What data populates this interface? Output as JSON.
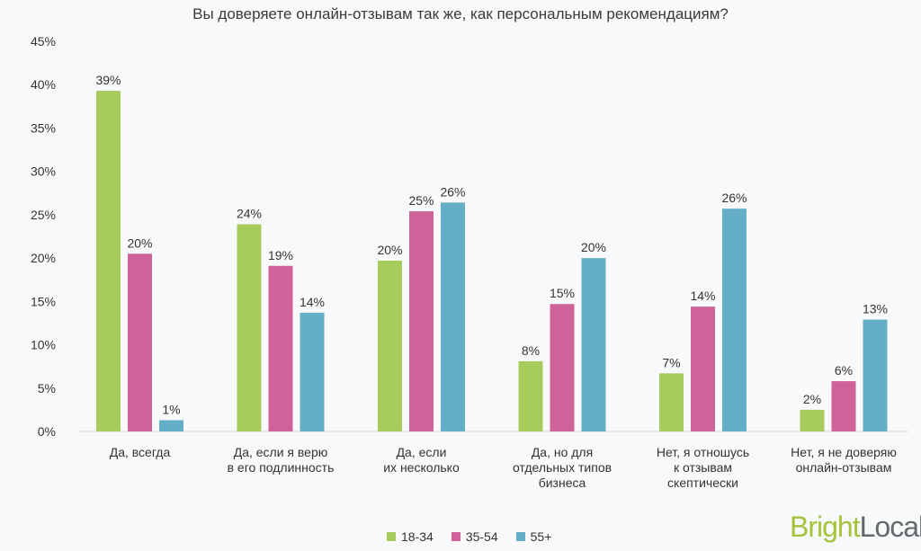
{
  "title": "Вы доверяете онлайн-отзывам так же, как персональным рекомендациям?",
  "brand": {
    "part1": "Bright",
    "part2": "Local"
  },
  "colors": {
    "s1834": "#a8cc5b",
    "s3554": "#cf6298",
    "s55": "#64aec8"
  },
  "chart_data": {
    "type": "bar",
    "title": "Вы доверяете онлайн-отзывам так же, как персональным рекомендациям?",
    "xlabel": "",
    "ylabel": "",
    "ylim": [
      0,
      45
    ],
    "yticks": [
      "0%",
      "5%",
      "10%",
      "15%",
      "20%",
      "25%",
      "30%",
      "35%",
      "40%",
      "45%"
    ],
    "grid": false,
    "legend_position": "bottom",
    "categories": [
      [
        "Да, всегда"
      ],
      [
        "Да, если я верю",
        "в его подлинность"
      ],
      [
        "Да, если",
        "их несколько"
      ],
      [
        "Да, но для",
        "отдельных типов",
        "бизнеса"
      ],
      [
        "Нет, я отношусь",
        "к отзывам",
        "скептически"
      ],
      [
        "Нет, я не доверяю",
        "онлайн-отзывам"
      ]
    ],
    "series": [
      {
        "name": "18-34",
        "color": "#a8cc5b",
        "values": [
          39.3,
          23.9,
          19.7,
          8.1,
          6.7,
          2.5
        ],
        "labels": [
          "39%",
          "24%",
          "20%",
          "8%",
          "7%",
          "2%"
        ]
      },
      {
        "name": "35-54",
        "color": "#cf6298",
        "values": [
          20.5,
          19.1,
          25.4,
          14.7,
          14.4,
          5.8
        ],
        "labels": [
          "20%",
          "19%",
          "25%",
          "15%",
          "14%",
          "6%"
        ]
      },
      {
        "name": "55+",
        "color": "#64aec8",
        "values": [
          1.3,
          13.7,
          26.4,
          20.0,
          25.7,
          12.9
        ],
        "labels": [
          "1%",
          "14%",
          "26%",
          "20%",
          "26%",
          "13%"
        ]
      }
    ]
  }
}
